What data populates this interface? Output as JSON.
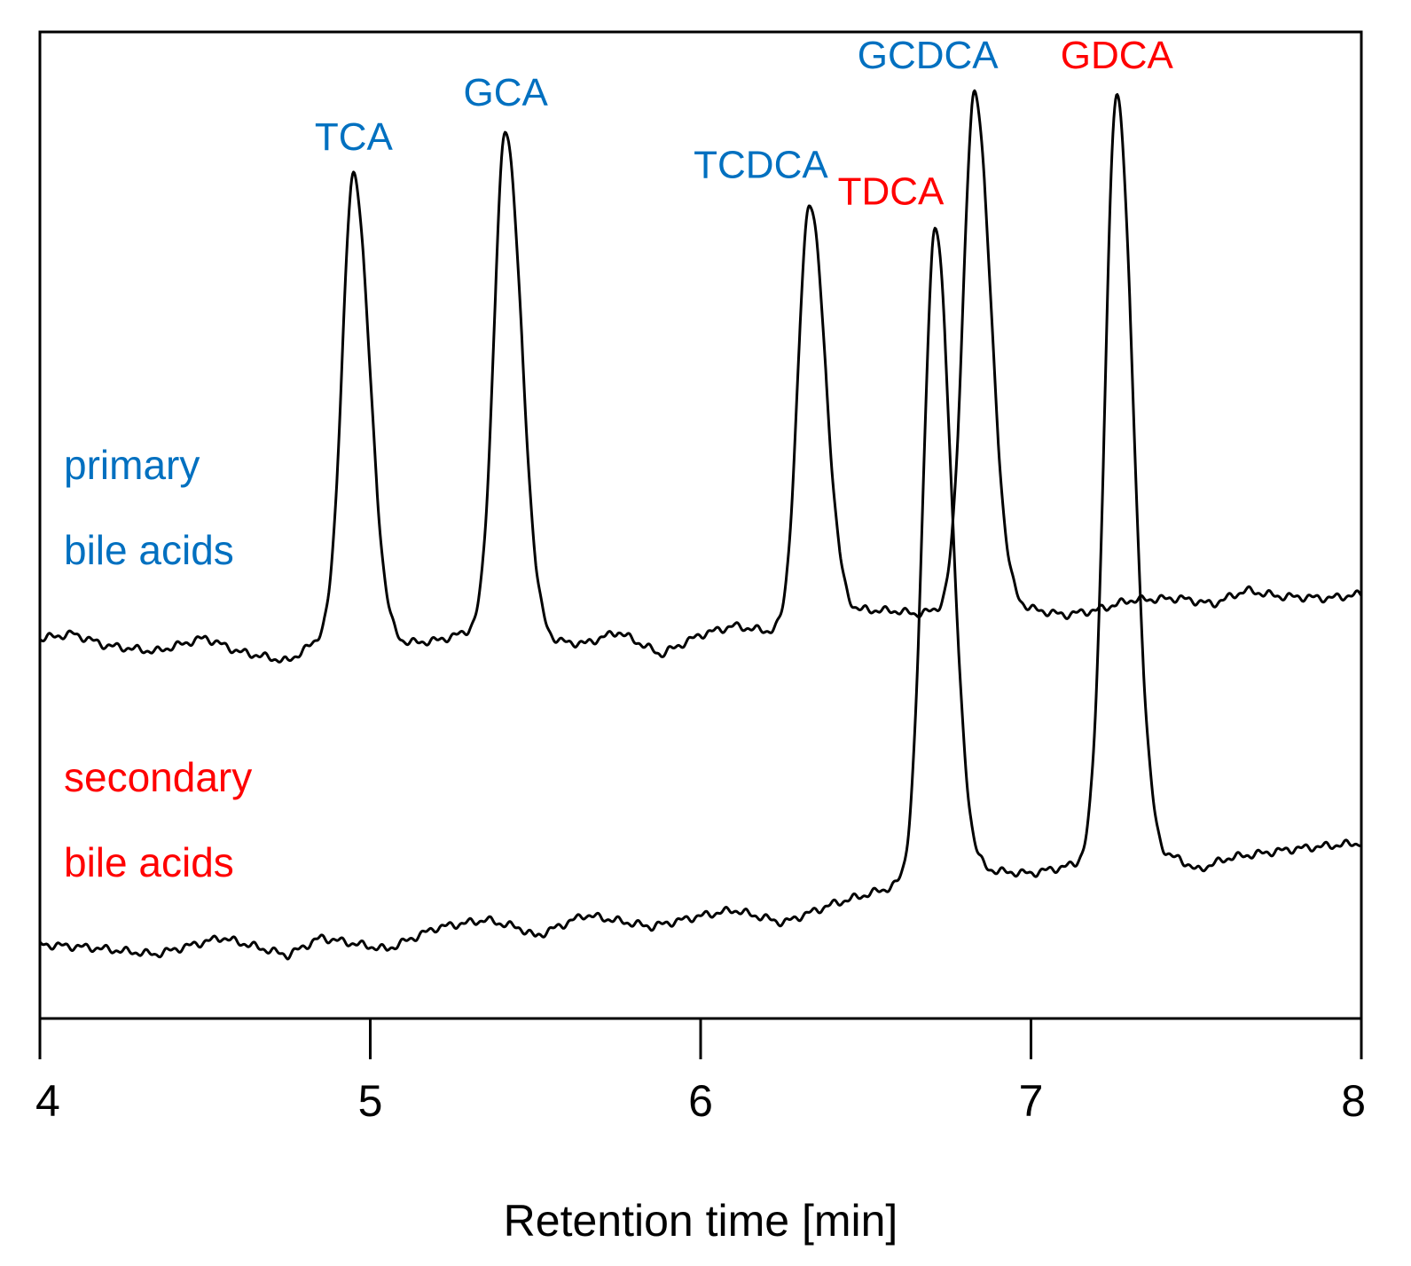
{
  "chart_data": {
    "type": "line",
    "title": "",
    "xlabel": "Retention time [min]",
    "ylabel": "",
    "xlim": [
      4,
      8
    ],
    "ylim": [
      0,
      1
    ],
    "grid": false,
    "x_ticks": [
      "4",
      "5",
      "6",
      "7",
      "8"
    ],
    "colors": {
      "primary": "#0070C0",
      "secondary": "#FF0000",
      "trace": "#000000"
    },
    "series": [
      {
        "name": "primary bile acids",
        "label_lines": [
          "primary",
          "bile acids"
        ],
        "color_key": "primary",
        "baseline": [
          [
            4.0,
            0.385
          ],
          [
            4.1,
            0.39
          ],
          [
            4.2,
            0.378
          ],
          [
            4.35,
            0.372
          ],
          [
            4.5,
            0.386
          ],
          [
            4.6,
            0.372
          ],
          [
            4.75,
            0.362
          ],
          [
            4.85,
            0.385
          ],
          [
            5.1,
            0.38
          ],
          [
            5.2,
            0.383
          ],
          [
            5.3,
            0.392
          ],
          [
            5.5,
            0.383
          ],
          [
            5.65,
            0.38
          ],
          [
            5.75,
            0.392
          ],
          [
            5.88,
            0.369
          ],
          [
            6.0,
            0.389
          ],
          [
            6.1,
            0.398
          ],
          [
            6.25,
            0.39
          ],
          [
            6.5,
            0.414
          ],
          [
            6.6,
            0.413
          ],
          [
            6.65,
            0.41
          ],
          [
            6.8,
            0.418
          ],
          [
            6.95,
            0.418
          ],
          [
            7.1,
            0.409
          ],
          [
            7.2,
            0.414
          ],
          [
            7.3,
            0.424
          ],
          [
            7.45,
            0.426
          ],
          [
            7.55,
            0.42
          ],
          [
            7.65,
            0.434
          ],
          [
            7.75,
            0.428
          ],
          [
            7.9,
            0.426
          ],
          [
            8.0,
            0.43
          ]
        ],
        "peaks": [
          {
            "label": "TCA",
            "rt": 4.95,
            "height": 0.855,
            "width": 0.035
          },
          {
            "label": "GCA",
            "rt": 5.41,
            "height": 0.9,
            "width": 0.035
          },
          {
            "label": "TCDCA",
            "rt": 6.33,
            "height": 0.827,
            "width": 0.035
          },
          {
            "label": "GCDCA",
            "rt": 6.83,
            "height": 0.938,
            "width": 0.035
          }
        ]
      },
      {
        "name": "secondary bile acids",
        "label_lines": [
          "secondary",
          "bile acids"
        ],
        "color_key": "secondary",
        "baseline": [
          [
            4.0,
            0.075
          ],
          [
            4.15,
            0.072
          ],
          [
            4.35,
            0.065
          ],
          [
            4.55,
            0.082
          ],
          [
            4.75,
            0.064
          ],
          [
            4.85,
            0.082
          ],
          [
            5.05,
            0.07
          ],
          [
            5.2,
            0.092
          ],
          [
            5.35,
            0.1
          ],
          [
            5.45,
            0.092
          ],
          [
            5.5,
            0.083
          ],
          [
            5.65,
            0.105
          ],
          [
            5.85,
            0.093
          ],
          [
            6.0,
            0.104
          ],
          [
            6.1,
            0.11
          ],
          [
            6.25,
            0.097
          ],
          [
            6.4,
            0.116
          ],
          [
            6.6,
            0.135
          ],
          [
            6.65,
            0.138
          ],
          [
            6.85,
            0.15
          ],
          [
            7.0,
            0.147
          ],
          [
            7.15,
            0.157
          ],
          [
            7.45,
            0.162
          ],
          [
            7.5,
            0.15
          ],
          [
            7.6,
            0.163
          ],
          [
            7.8,
            0.172
          ],
          [
            8.0,
            0.178
          ]
        ],
        "peaks": [
          {
            "label": "TDCA",
            "rt": 6.71,
            "height": 0.8,
            "width": 0.036
          },
          {
            "label": "GDCA",
            "rt": 7.26,
            "height": 0.938,
            "width": 0.036
          }
        ]
      }
    ]
  }
}
